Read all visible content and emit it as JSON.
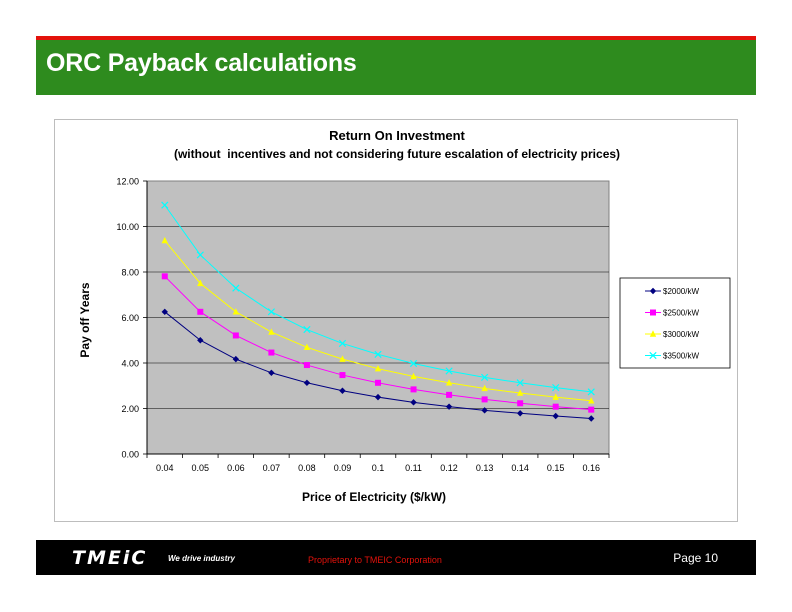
{
  "header": {
    "title": "ORC Payback calculations"
  },
  "footer": {
    "logo": "TMEiC",
    "tagline": "We drive industry",
    "proprietary": "Proprietary to TMEIC Corporation",
    "page": "Page 10"
  },
  "chart_data": {
    "type": "line",
    "title": "Return On Investment",
    "subtitle": "(without  incentives and not considering future escalation of electricity prices)",
    "xlabel": "Price of Electricity ($/kW)",
    "ylabel": "Pay off Years",
    "x": [
      "0.04",
      "0.05",
      "0.06",
      "0.07",
      "0.08",
      "0.09",
      "0.1",
      "0.11",
      "0.12",
      "0.13",
      "0.14",
      "0.15",
      "0.16"
    ],
    "ylim": [
      0,
      12
    ],
    "yticks": [
      "0.00",
      "2.00",
      "4.00",
      "6.00",
      "8.00",
      "10.00",
      "12.00"
    ],
    "grid": true,
    "legend_position": "right",
    "plot_background": "#c0c0c0",
    "series": [
      {
        "name": "$2000/kW",
        "color": "#000080",
        "marker": "diamond",
        "values": [
          6.25,
          5.0,
          4.17,
          3.57,
          3.13,
          2.78,
          2.5,
          2.27,
          2.08,
          1.92,
          1.79,
          1.67,
          1.56
        ]
      },
      {
        "name": "$2500/kW",
        "color": "#ff00ff",
        "marker": "square",
        "values": [
          7.81,
          6.25,
          5.21,
          4.46,
          3.91,
          3.47,
          3.13,
          2.84,
          2.6,
          2.4,
          2.23,
          2.08,
          1.95
        ]
      },
      {
        "name": "$3000/kW",
        "color": "#ffff00",
        "marker": "triangle",
        "values": [
          9.38,
          7.5,
          6.25,
          5.36,
          4.69,
          4.17,
          3.75,
          3.41,
          3.13,
          2.88,
          2.68,
          2.5,
          2.34
        ]
      },
      {
        "name": "$3500/kW",
        "color": "#00ffff",
        "marker": "x",
        "values": [
          10.94,
          8.75,
          7.29,
          6.25,
          5.47,
          4.86,
          4.38,
          3.98,
          3.65,
          3.37,
          3.13,
          2.92,
          2.73
        ]
      }
    ]
  }
}
